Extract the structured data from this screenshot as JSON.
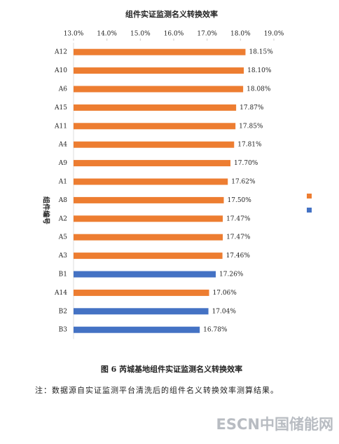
{
  "chart_data": {
    "type": "hbar",
    "title": "组件实证监测名义转换效率",
    "ylabel": "组件编号",
    "categories": [
      "A12",
      "A10",
      "A6",
      "A15",
      "A11",
      "A4",
      "A9",
      "A1",
      "A8",
      "A2",
      "A5",
      "A3",
      "B1",
      "A14",
      "B2",
      "B3"
    ],
    "values": [
      18.15,
      18.1,
      18.08,
      17.87,
      17.85,
      17.81,
      17.7,
      17.62,
      17.5,
      17.47,
      17.47,
      17.46,
      17.26,
      17.06,
      17.04,
      16.78
    ],
    "value_labels": [
      "18.15%",
      "18.10%",
      "18.08%",
      "17.87%",
      "17.85%",
      "17.81%",
      "17.70%",
      "17.62%",
      "17.50%",
      "17.47%",
      "17.47%",
      "17.46%",
      "17.26%",
      "17.06%",
      "17.04%",
      "16.78%"
    ],
    "colors": [
      "#ed7d31",
      "#ed7d31",
      "#ed7d31",
      "#ed7d31",
      "#ed7d31",
      "#ed7d31",
      "#ed7d31",
      "#ed7d31",
      "#ed7d31",
      "#ed7d31",
      "#ed7d31",
      "#ed7d31",
      "#4472c4",
      "#ed7d31",
      "#4472c4",
      "#4472c4"
    ],
    "legend_colors": [
      "#ed7d31",
      "#4472c4"
    ],
    "xlim": [
      13,
      19
    ],
    "xticks": [
      {
        "value": 13,
        "label": "13.0%"
      },
      {
        "value": 14,
        "label": "14.0%"
      },
      {
        "value": 15,
        "label": "15.0%"
      },
      {
        "value": 16,
        "label": "16.0%"
      },
      {
        "value": 17,
        "label": "17.0%"
      },
      {
        "value": 18,
        "label": "18.0%"
      },
      {
        "value": 19,
        "label": "19.0%"
      }
    ]
  },
  "caption": "图 6   芮城基地组件实证监测名义转换效率",
  "note": "注：数据源自实证监测平台清洗后的组件名义转换效率测算结果。",
  "watermark": "ESCN中国储能网"
}
